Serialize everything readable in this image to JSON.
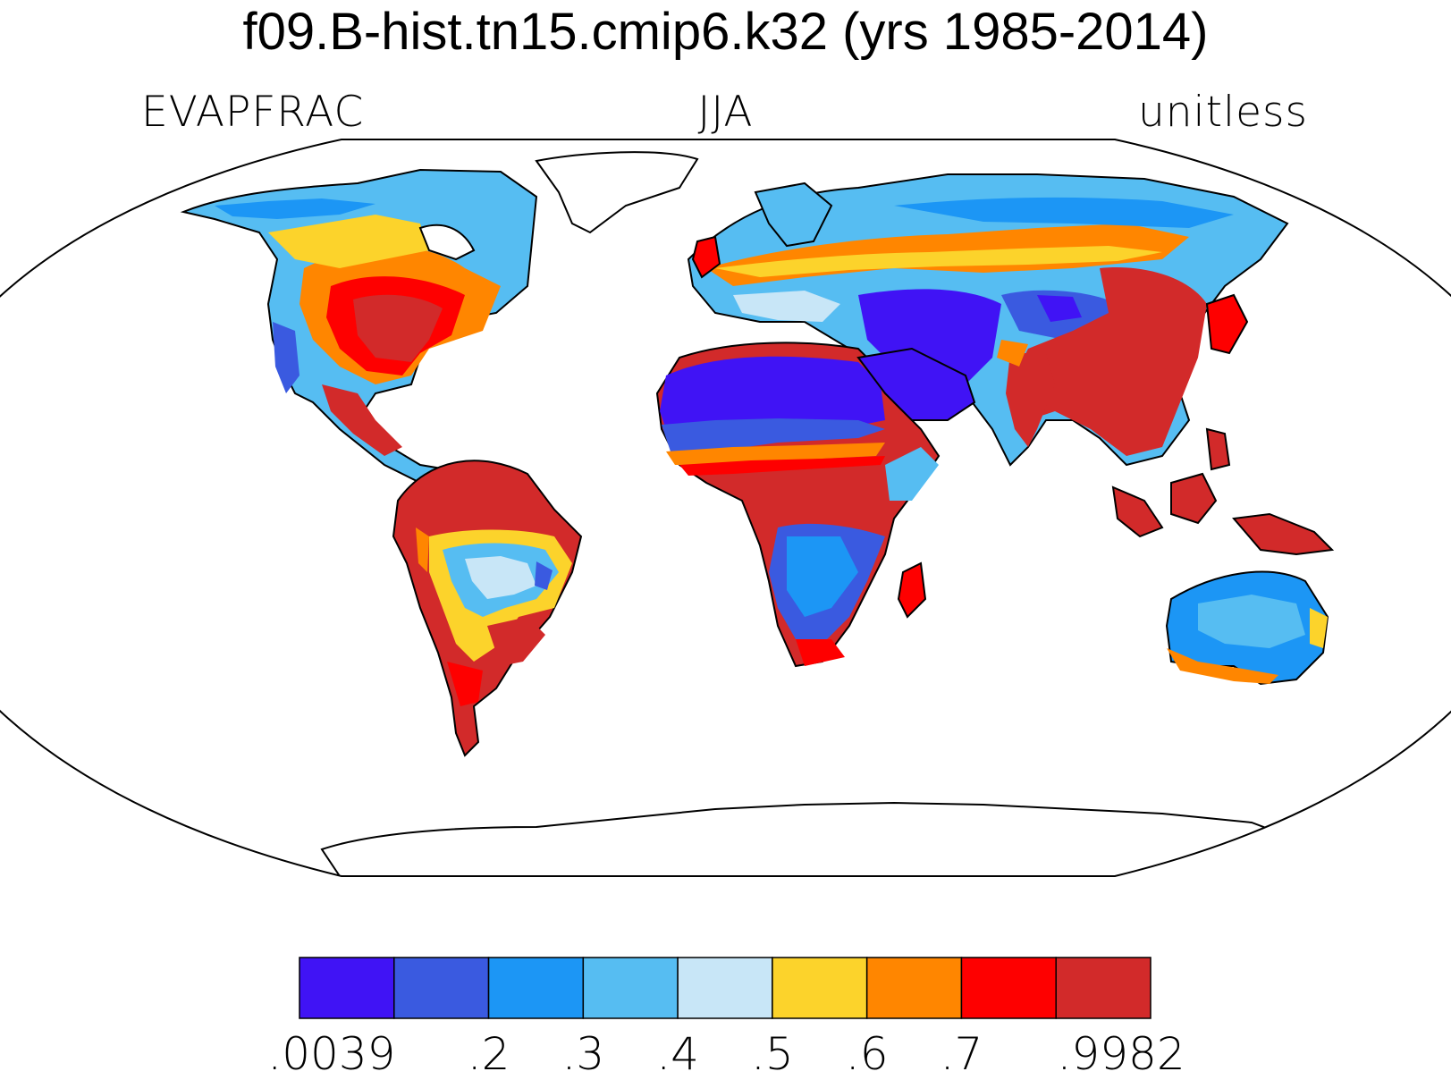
{
  "header": {
    "title": "f09.B-hist.tn15.cmip6.k32 (yrs 1985-2014)",
    "variable": "EVAPFRAC",
    "season": "JJA",
    "units": "unitless"
  },
  "legend": {
    "colors": [
      "#4013f5",
      "#3a5ae0",
      "#1c96f5",
      "#56bdf2",
      "#c8e6f7",
      "#fcd32b",
      "#ff8600",
      "#fe0000",
      "#d22a2a"
    ],
    "tick_labels": [
      ".0039",
      ".2",
      ".3",
      ".4",
      ".5",
      ".6",
      ".7",
      ".9982"
    ]
  },
  "regions": [
    {
      "name": "sahara",
      "class": 0
    },
    {
      "name": "arabia",
      "class": 0
    },
    {
      "name": "amazon",
      "class": 8
    },
    {
      "name": "eastern-usa",
      "class": 8
    },
    {
      "name": "central-africa",
      "class": 8
    },
    {
      "name": "china-india",
      "class": 8
    },
    {
      "name": "maritime-continent",
      "class": 8
    },
    {
      "name": "australia-interior",
      "class": 2
    },
    {
      "name": "southern-africa",
      "class": 1
    },
    {
      "name": "siberia",
      "class": 3
    },
    {
      "name": "europe",
      "class": 6
    },
    {
      "name": "central-asia",
      "class": 1
    }
  ]
}
